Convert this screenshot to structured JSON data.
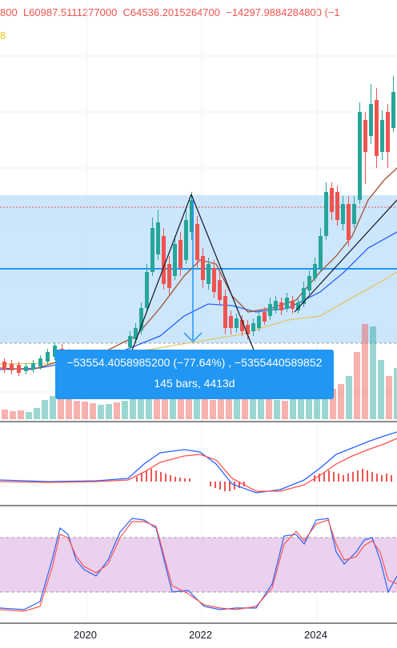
{
  "legend": {
    "open_partial": "800",
    "low": "L60987.5111277000",
    "close": "C64536.2015264700",
    "change_partial": "−14297.9884284800 (−1",
    "ma_partial": "8"
  },
  "measure": {
    "line1": "−53554.4058985200 (−77.64%) , −5355440589852",
    "line2": "145 bars, 4413d"
  },
  "xaxis": {
    "labels": [
      "2020",
      "2022",
      "2024"
    ]
  },
  "colors": {
    "up": "#26a69a",
    "down": "#ef5350",
    "measure_fill": "#bbdefb",
    "measure_blue": "#2196f3",
    "macd_line": "#2962ff",
    "signal_line": "#ff5252",
    "stoch_band": "#e1bee7",
    "ma_yellow": "#e6c36a",
    "ma_brown": "#a0522d"
  }
}
